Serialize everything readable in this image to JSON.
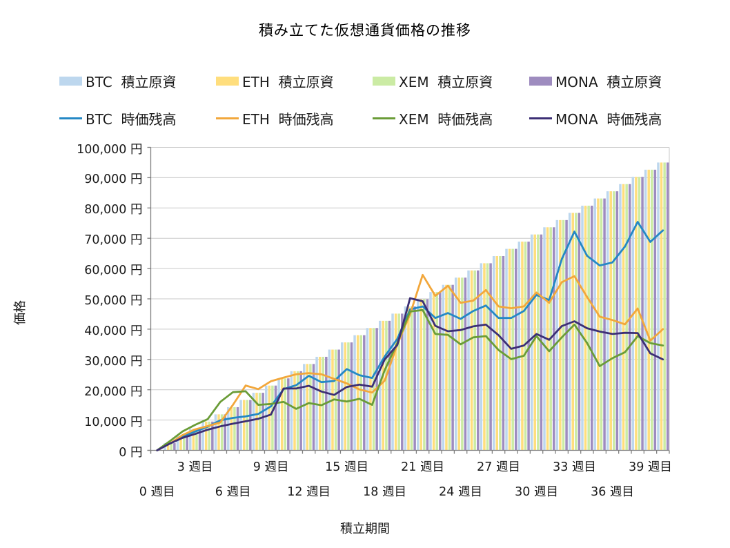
{
  "title": "積み立てた仮想通貨価格の推移",
  "axes": {
    "y_title": "価格",
    "x_title": "積立期間",
    "y_tick_labels": [
      {
        "value": 0,
        "label": "0 円"
      },
      {
        "value": 10000,
        "label": "10,000 円"
      },
      {
        "value": 20000,
        "label": "20,000 円"
      },
      {
        "value": 30000,
        "label": "30,000 円"
      },
      {
        "value": 40000,
        "label": "40,000 円"
      },
      {
        "value": 50000,
        "label": "50,000 円"
      },
      {
        "value": 60000,
        "label": "60,000 円"
      },
      {
        "value": 70000,
        "label": "70,000 円"
      },
      {
        "value": 80000,
        "label": "80,000 円"
      },
      {
        "value": 90000,
        "label": "90,000 円"
      },
      {
        "value": 100000,
        "label": "100,000 円"
      }
    ],
    "x_tick_rows": [
      [
        {
          "week": 3,
          "label": "3 週目"
        },
        {
          "week": 9,
          "label": "9 週目"
        },
        {
          "week": 15,
          "label": "15 週目"
        },
        {
          "week": 21,
          "label": "21 週目"
        },
        {
          "week": 27,
          "label": "27 週目"
        },
        {
          "week": 33,
          "label": "33 週目"
        },
        {
          "week": 39,
          "label": "39 週目"
        }
      ],
      [
        {
          "week": 0,
          "label": "0 週目"
        },
        {
          "week": 6,
          "label": "6 週目"
        },
        {
          "week": 12,
          "label": "12 週目"
        },
        {
          "week": 18,
          "label": "18 週目"
        },
        {
          "week": 24,
          "label": "24 週目"
        },
        {
          "week": 30,
          "label": "30 週目"
        },
        {
          "week": 36,
          "label": "36 週目"
        }
      ]
    ]
  },
  "legend": {
    "principal": [
      {
        "label": "BTC  積立原資",
        "color": "#BDD7EE"
      },
      {
        "label": "ETH  積立原資",
        "color": "#FFDE7D"
      },
      {
        "label": "XEM  積立原資",
        "color": "#CBEBA4"
      },
      {
        "label": "MONA  積立原資",
        "color": "#9E8CBF"
      }
    ],
    "market_value": [
      {
        "label": "BTC  時価残高",
        "color": "#2488C5"
      },
      {
        "label": "ETH  時価残高",
        "color": "#F2A73B"
      },
      {
        "label": "XEM  時価残高",
        "color": "#6A9C37"
      },
      {
        "label": "MONA  時価残高",
        "color": "#3C2F75"
      }
    ]
  },
  "chart_data": {
    "type": "bar+line",
    "x_unit": "週目",
    "weeks": [
      0,
      1,
      2,
      3,
      4,
      5,
      6,
      7,
      8,
      9,
      10,
      11,
      12,
      13,
      14,
      15,
      16,
      17,
      18,
      19,
      20,
      21,
      22,
      23,
      24,
      25,
      26,
      27,
      28,
      29,
      30,
      31,
      32,
      33,
      34,
      35,
      36,
      37,
      38,
      39,
      40
    ],
    "ylim": [
      0,
      100000
    ],
    "y_step": 10000,
    "grid": true,
    "legend_position": "top",
    "principal_bars": {
      "note": "積立原資 - identical cumulative principal per currency, stacked side by side per week",
      "weekly_amount": 2375,
      "coins": [
        "BTC",
        "ETH",
        "XEM",
        "MONA"
      ],
      "colors": [
        "#BDD7EE",
        "#FFDE7D",
        "#CBEBA4",
        "#9E8CBF"
      ],
      "values": [
        0,
        2375,
        4750,
        7125,
        9500,
        11875,
        14250,
        16625,
        19000,
        21375,
        23750,
        26125,
        28500,
        30875,
        33250,
        35625,
        38000,
        40375,
        42750,
        45125,
        47500,
        49875,
        52250,
        54625,
        57000,
        59375,
        61750,
        64125,
        66500,
        68875,
        71250,
        73625,
        76000,
        78375,
        80750,
        83125,
        85500,
        87875,
        90250,
        92625,
        95000
      ]
    },
    "series": [
      {
        "name": "BTC 時価残高",
        "color": "#2488C5",
        "values": [
          0,
          2200,
          4500,
          6200,
          7800,
          9900,
          10700,
          11200,
          12000,
          14500,
          20200,
          21500,
          24600,
          22500,
          22900,
          26800,
          24800,
          23900,
          31000,
          36800,
          46500,
          47500,
          43700,
          45300,
          43400,
          46000,
          47800,
          43700,
          43700,
          46000,
          51300,
          49600,
          63100,
          72200,
          64200,
          61000,
          62000,
          67300,
          75400,
          68800,
          72600
        ]
      },
      {
        "name": "ETH 時価残高",
        "color": "#F2A73B",
        "values": [
          0,
          2200,
          5000,
          6900,
          8000,
          9200,
          15000,
          21400,
          20200,
          22800,
          24000,
          25100,
          25500,
          25100,
          23600,
          22100,
          20100,
          19100,
          23000,
          35000,
          44900,
          57900,
          51000,
          54300,
          48700,
          49400,
          52900,
          47500,
          46900,
          47500,
          52100,
          48700,
          55500,
          57500,
          50600,
          44100,
          43000,
          41600,
          46800,
          36200,
          40000
        ]
      },
      {
        "name": "XEM 時価残高",
        "color": "#6A9C37",
        "values": [
          0,
          3000,
          6200,
          8400,
          10300,
          16000,
          19200,
          19500,
          15000,
          15300,
          16000,
          13700,
          15600,
          14900,
          16800,
          16100,
          17000,
          15000,
          26500,
          35500,
          45800,
          46300,
          38400,
          38100,
          35000,
          37300,
          37700,
          33100,
          30100,
          31200,
          37700,
          32700,
          37300,
          41500,
          35400,
          27800,
          30400,
          32400,
          37700,
          35400,
          34600
        ]
      },
      {
        "name": "MONA 時価残高",
        "color": "#3C2F75",
        "values": [
          0,
          2200,
          4100,
          5400,
          6800,
          7900,
          8800,
          9600,
          10400,
          11800,
          20400,
          20400,
          21300,
          19400,
          18300,
          20900,
          21700,
          21000,
          30000,
          34800,
          50200,
          49200,
          41100,
          39300,
          39700,
          40900,
          41500,
          38000,
          33500,
          34600,
          38400,
          36500,
          41000,
          42600,
          40300,
          39200,
          38400,
          38800,
          38700,
          32000,
          30000
        ]
      }
    ],
    "style": {
      "grid_color": "#C9C9C9",
      "axis_color": "#808080",
      "text_color": "#1A1A1A"
    }
  }
}
